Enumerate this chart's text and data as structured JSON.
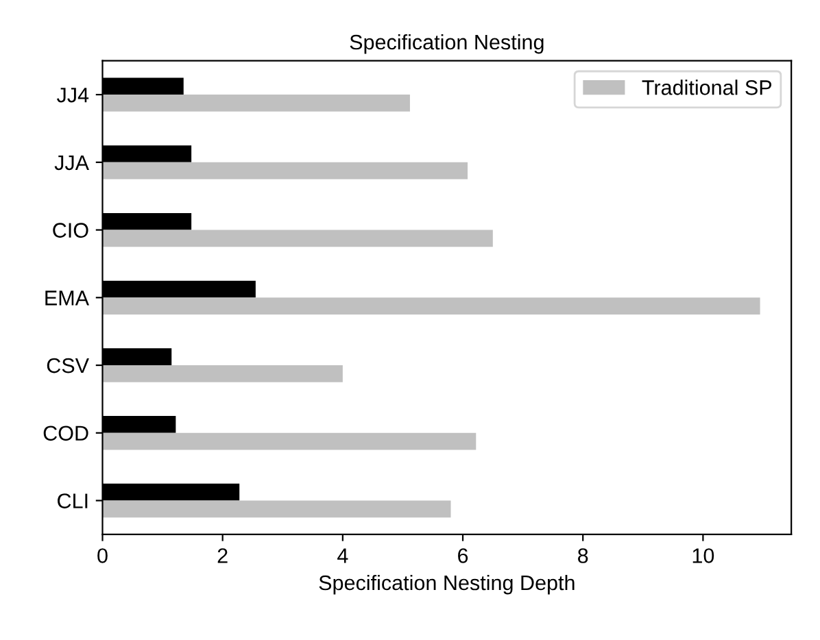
{
  "chart_data": {
    "type": "bar",
    "orientation": "horizontal",
    "title": "Specification Nesting",
    "xlabel": "Specification Nesting Depth",
    "categories": [
      "JJ4",
      "JJA",
      "CIO",
      "EMA",
      "CSV",
      "COD",
      "CLI"
    ],
    "series": [
      {
        "color": "#000000",
        "values": [
          1.35,
          1.48,
          1.48,
          2.55,
          1.15,
          1.22,
          2.28
        ]
      },
      {
        "name": "Traditional SP",
        "color": "#c0c0c0",
        "values": [
          5.12,
          6.08,
          6.5,
          10.95,
          4.0,
          6.22,
          5.8
        ]
      }
    ],
    "xlim": [
      0,
      11.47
    ],
    "xticks": [
      0,
      2,
      4,
      6,
      8,
      10
    ],
    "legend": "top right",
    "grid": false
  }
}
